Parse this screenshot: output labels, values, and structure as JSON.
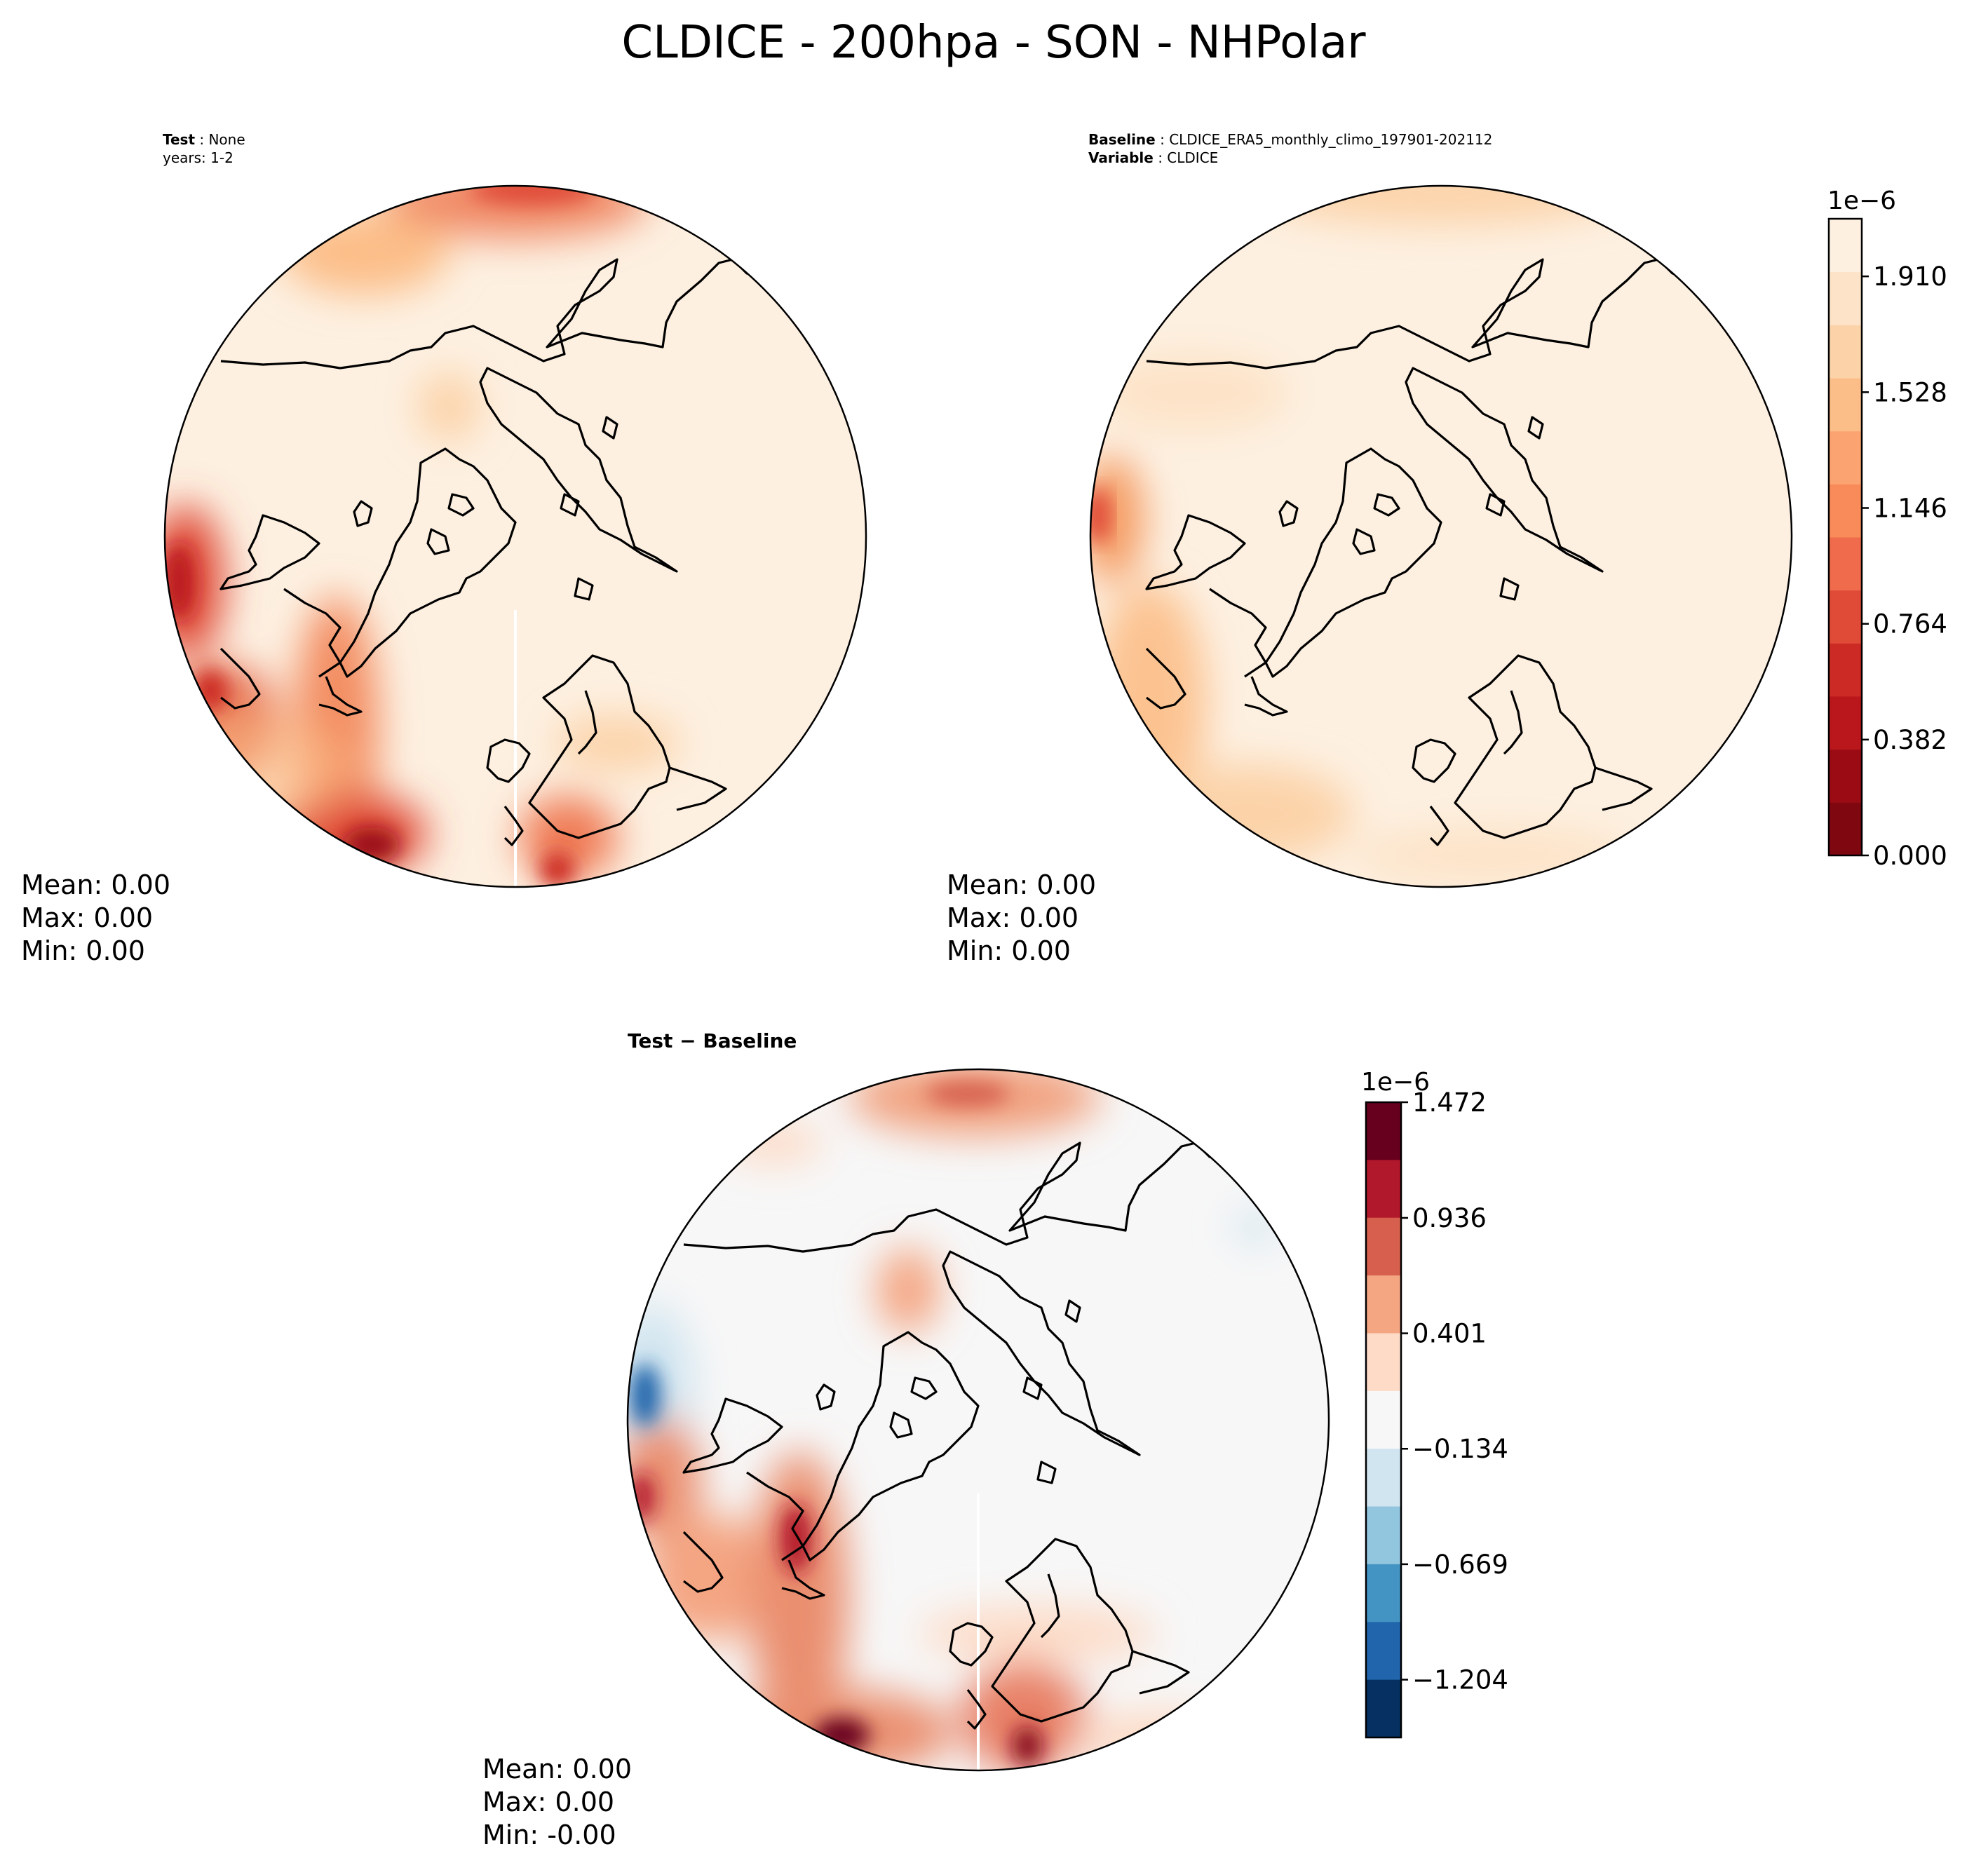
{
  "figure": {
    "title": "CLDICE - 200hpa - SON - NHPolar"
  },
  "panels": [
    {
      "id": "test",
      "header_bold": "Test",
      "header_value": "None",
      "header_line2": "years: 1-2",
      "stats": {
        "mean": "Mean:  0.00",
        "max": "Max:  0.00",
        "min": "Min:  0.00"
      }
    },
    {
      "id": "baseline",
      "header_bold": "Baseline",
      "header_value": "CLDICE_ERA5_monthly_climo_197901-202112",
      "header2_bold": "Variable",
      "header2_value": "CLDICE",
      "stats": {
        "mean": "Mean:  0.00",
        "max": "Max:  0.00",
        "min": "Min:  0.00"
      }
    },
    {
      "id": "diff",
      "header": "Test − Baseline",
      "stats": {
        "mean": "Mean:  0.00",
        "max": "Max:  0.00",
        "min": "Min: -0.00"
      }
    }
  ],
  "colorbars": {
    "abs": {
      "exponent": "1e−6",
      "ticks": [
        "1.910",
        "1.528",
        "1.146",
        "0.764",
        "0.382",
        "0.000"
      ],
      "colors": [
        "#fdf0e1",
        "#fde3c7",
        "#fcd3a9",
        "#fcbe88",
        "#fca471",
        "#f98b5b",
        "#ef6b4b",
        "#e04b37",
        "#cc2a24",
        "#b9171c",
        "#9a0b14",
        "#7f0710"
      ]
    },
    "diff": {
      "exponent": "1e−6",
      "ticks": [
        "1.472",
        "0.936",
        "0.401",
        "−0.134",
        "−0.669",
        "−1.204"
      ],
      "colors": [
        "#67001f",
        "#b2182b",
        "#d6604d",
        "#f4a582",
        "#fddbc7",
        "#f7f7f7",
        "#d1e5f0",
        "#92c5de",
        "#4393c3",
        "#2166ac",
        "#053061"
      ]
    }
  },
  "chart_data": [
    {
      "type": "heatmap",
      "title": "Test : None",
      "subtitle": "years: 1-2",
      "projection": "north polar stereographic",
      "colorbar_range": [
        0.0,
        2.1
      ],
      "units_scale": "1e-6",
      "summary": {
        "mean": 0.0,
        "max": 0.0,
        "min": 0.0
      }
    },
    {
      "type": "heatmap",
      "title": "Baseline : CLDICE_ERA5_monthly_climo_197901-202112",
      "subtitle": "Variable : CLDICE",
      "projection": "north polar stereographic",
      "colorbar_range": [
        0.0,
        2.1
      ],
      "colorbar_ticks": [
        0.0,
        0.382,
        0.764,
        1.146,
        1.528,
        1.91
      ],
      "units_scale": "1e-6",
      "summary": {
        "mean": 0.0,
        "max": 0.0,
        "min": 0.0
      }
    },
    {
      "type": "heatmap",
      "title": "Test − Baseline",
      "projection": "north polar stereographic",
      "colorbar_range": [
        -1.47,
        1.47
      ],
      "colorbar_ticks": [
        -1.204,
        -0.669,
        -0.134,
        0.401,
        0.936,
        1.472
      ],
      "units_scale": "1e-6",
      "summary": {
        "mean": 0.0,
        "max": 0.0,
        "min": -0.0
      }
    }
  ]
}
